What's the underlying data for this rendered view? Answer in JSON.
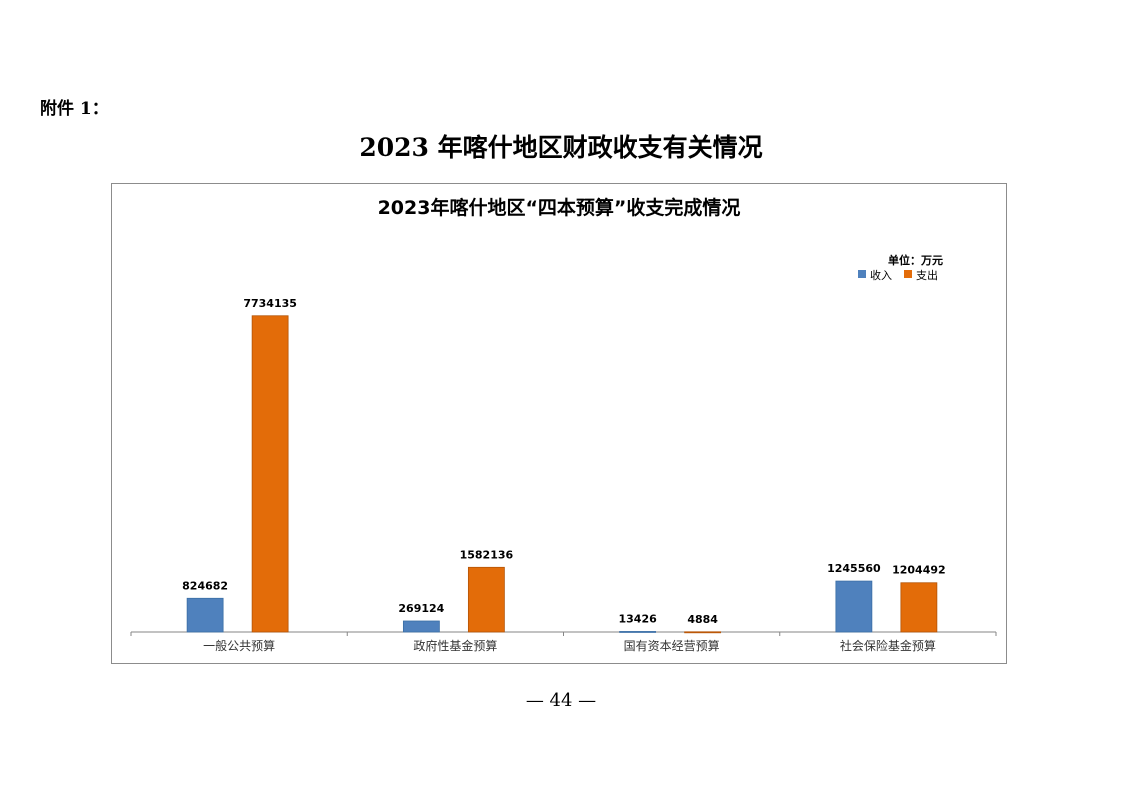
{
  "attachment_label": "附件 1：",
  "document_title": "2023 年喀什地区财政收支有关情况",
  "page_number": "— 44 —",
  "chart_data": {
    "type": "bar",
    "title": "2023年喀什地区“四本预算”收支完成情况",
    "unit_label": "单位：万元",
    "categories": [
      "一般公共预算",
      "政府性基金预算",
      "国有资本经营预算",
      "社会保险基金预算"
    ],
    "series": [
      {
        "name": "收入",
        "color": "#4f81bd",
        "values": [
          824682,
          269124,
          13426,
          1245560
        ]
      },
      {
        "name": "支出",
        "color": "#e36c09",
        "values": [
          7734135,
          1582136,
          4884,
          1204492
        ]
      }
    ],
    "ylim": [
      0,
      9000000
    ],
    "grid": false,
    "legend": "top-right",
    "data_labels": true
  }
}
